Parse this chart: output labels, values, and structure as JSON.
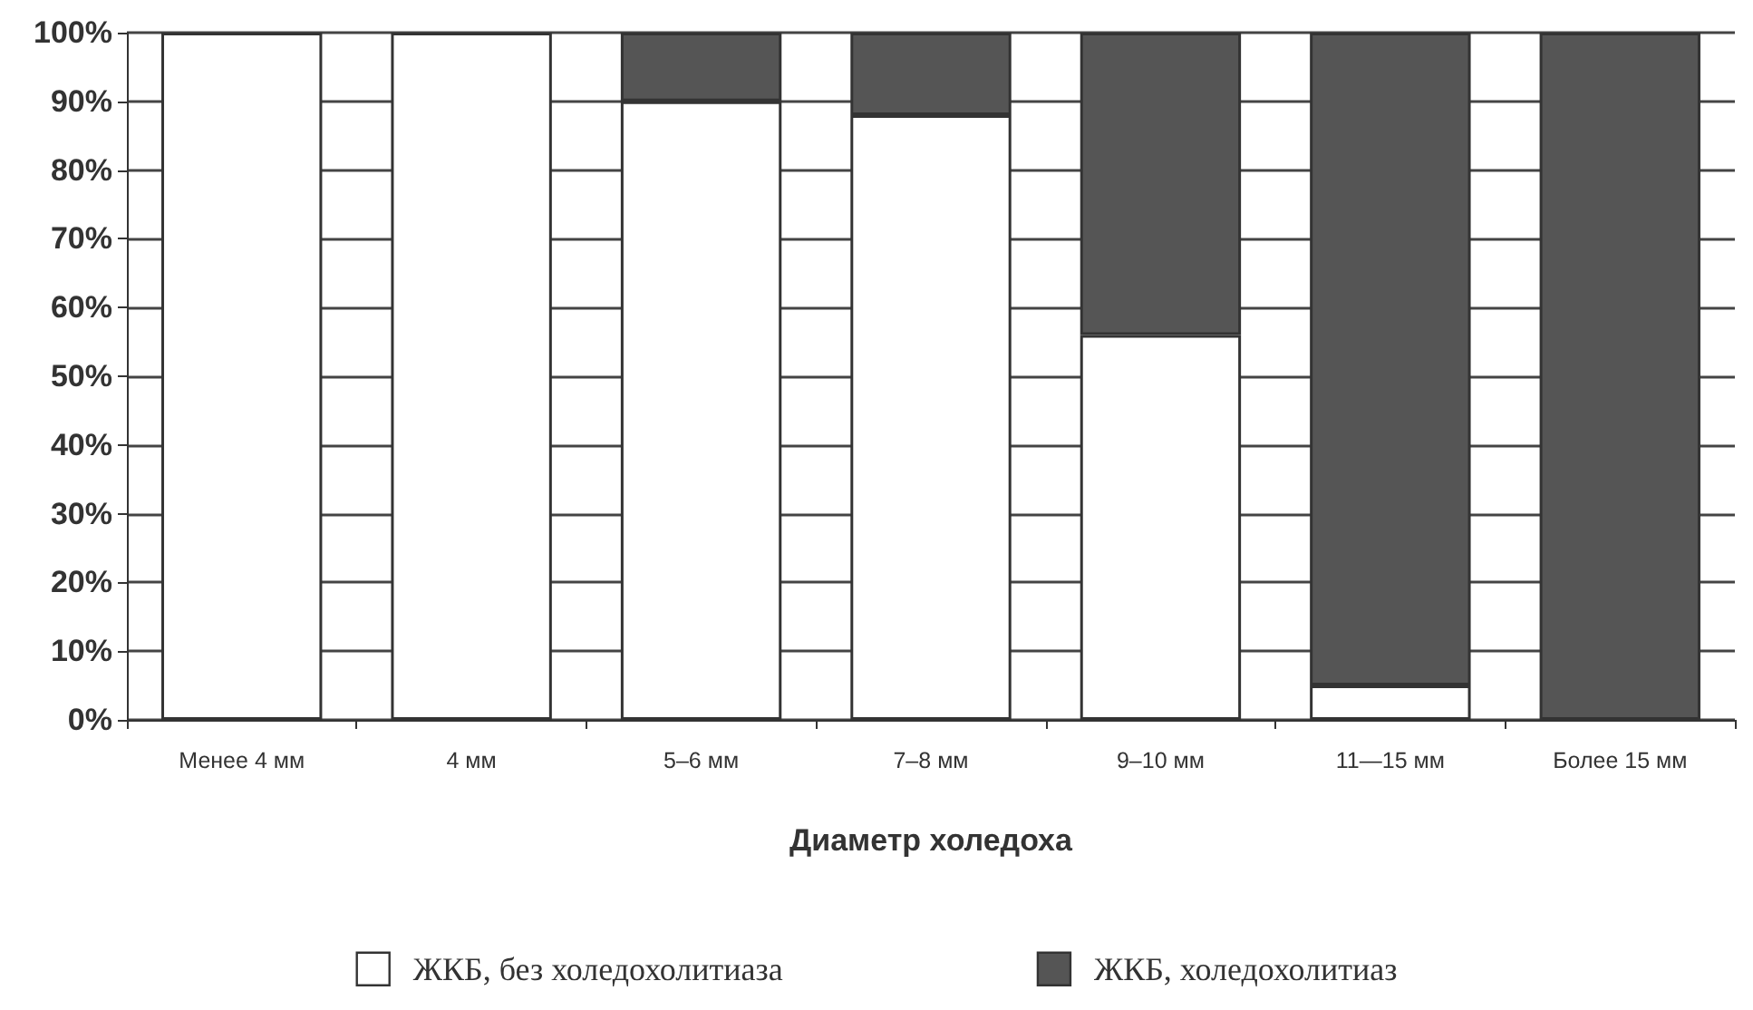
{
  "chart_data": {
    "type": "bar",
    "stacked": true,
    "xlabel": "Диаметр холедоха",
    "categories": [
      "Менее 4 мм",
      "4 мм",
      "5–6 мм",
      "7–8 мм",
      "9–10 мм",
      "11—15 мм",
      "Более 15 мм"
    ],
    "series": [
      {
        "name": "ЖКБ, без холедохолитиаза",
        "color": "#ffffff",
        "values": [
          100,
          100,
          90,
          88,
          56,
          5,
          0
        ]
      },
      {
        "name": "ЖКБ, холедохолитиаз",
        "color": "#555555",
        "values": [
          0,
          0,
          10,
          12,
          44,
          95,
          100
        ]
      }
    ],
    "ylim": [
      0,
      100
    ],
    "yticks": [
      {
        "value": 0,
        "label": "0%"
      },
      {
        "value": 10,
        "label": "10%"
      },
      {
        "value": 20,
        "label": "20%"
      },
      {
        "value": 30,
        "label": "30%"
      },
      {
        "value": 40,
        "label": "40%"
      },
      {
        "value": 50,
        "label": "50%"
      },
      {
        "value": 60,
        "label": "60%"
      },
      {
        "value": 70,
        "label": "70%"
      },
      {
        "value": 80,
        "label": "80%"
      },
      {
        "value": 90,
        "label": "90%"
      },
      {
        "value": 100,
        "label": "100%"
      }
    ],
    "grid": "y",
    "legend": "bottom"
  }
}
